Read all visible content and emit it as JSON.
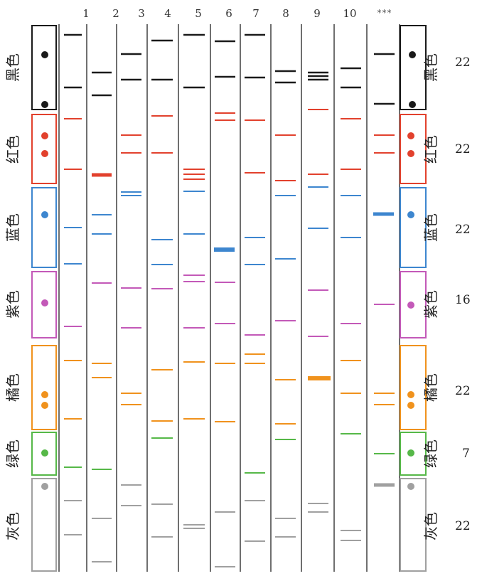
{
  "header": {
    "lane_numbers": [
      "1",
      "2",
      "3",
      "4",
      "5",
      "6",
      "7",
      "8",
      "9",
      "10"
    ],
    "reference_label": "***"
  },
  "colors": {
    "black": "#1a1a1a",
    "red": "#e2412d",
    "blue": "#3d86cf",
    "purple": "#c359b8",
    "orange": "#f0921d",
    "green": "#56b848",
    "gray": "#a0a0a0",
    "divider": "#6f6f6f"
  },
  "groups": [
    {
      "key": "black",
      "label": "黑色",
      "count": "22"
    },
    {
      "key": "red",
      "label": "红色",
      "count": "22"
    },
    {
      "key": "blue",
      "label": "蓝色",
      "count": "22"
    },
    {
      "key": "purple",
      "label": "紫色",
      "count": "16"
    },
    {
      "key": "orange",
      "label": "橘色",
      "count": "22"
    },
    {
      "key": "green",
      "label": "绿色",
      "count": "7"
    },
    {
      "key": "gray",
      "label": "灰色",
      "count": "22"
    }
  ]
}
